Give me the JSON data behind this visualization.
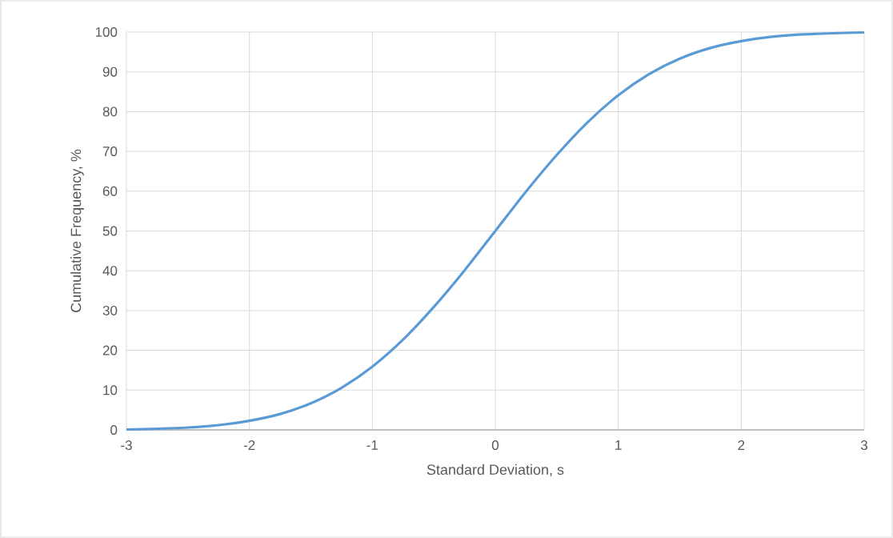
{
  "chart_data": {
    "type": "line",
    "xlabel": "Standard Deviation, s",
    "ylabel": "Cumulative Frequency, %",
    "x": [
      -3,
      -2.75,
      -2.5,
      -2.25,
      -2,
      -1.75,
      -1.5,
      -1.25,
      -1,
      -0.75,
      -0.5,
      -0.25,
      0,
      0.25,
      0.5,
      0.75,
      1,
      1.25,
      1.5,
      1.75,
      2,
      2.25,
      2.5,
      2.75,
      3
    ],
    "values": [
      0.1,
      0.3,
      0.6,
      1.2,
      2.3,
      4,
      6.7,
      10.6,
      15.9,
      22.7,
      30.9,
      40.1,
      50,
      59.9,
      69.1,
      77.3,
      84.1,
      89.4,
      93.3,
      96,
      97.7,
      98.8,
      99.4,
      99.7,
      99.9
    ],
    "color": "#5b9bd5",
    "xlim": [
      -3,
      3
    ],
    "ylim": [
      0,
      100
    ],
    "xticks": [
      -3,
      -2,
      -1,
      0,
      1,
      2,
      3
    ],
    "yticks": [
      0,
      10,
      20,
      30,
      40,
      50,
      60,
      70,
      80,
      90,
      100
    ],
    "grid": true
  }
}
